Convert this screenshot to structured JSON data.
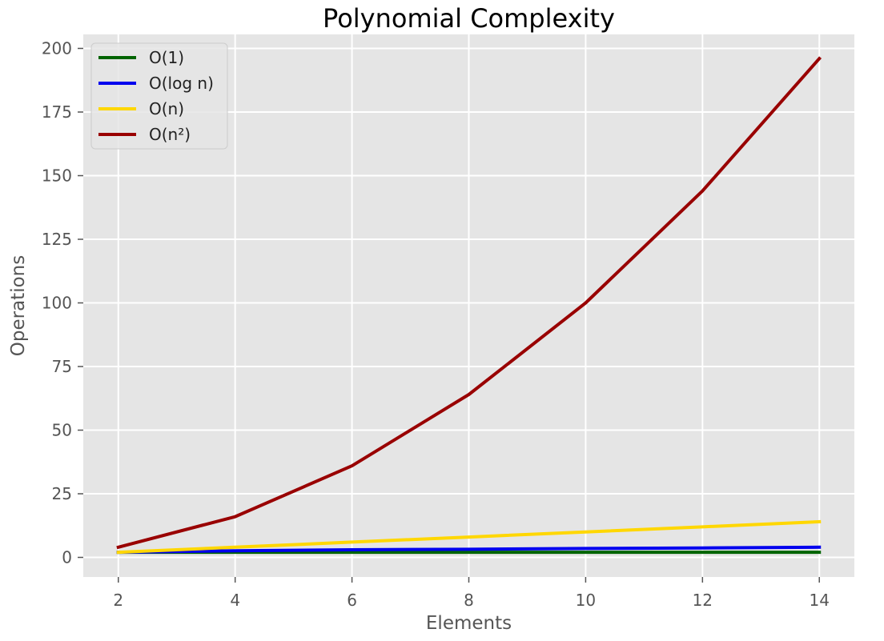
{
  "chart_data": {
    "type": "line",
    "title": "Polynomial Complexity",
    "xlabel": "Elements",
    "ylabel": "Operations",
    "x": [
      2,
      4,
      6,
      8,
      10,
      12,
      14
    ],
    "xlim": [
      1.4,
      14.6
    ],
    "ylim": [
      -7.7,
      205.5
    ],
    "xticks": [
      2,
      4,
      6,
      8,
      10,
      12,
      14
    ],
    "yticks": [
      0,
      25,
      50,
      75,
      100,
      125,
      150,
      175,
      200
    ],
    "grid": true,
    "legend_position": "top-left",
    "series": [
      {
        "name": "O(1)",
        "color": "#006400",
        "values": [
          2,
          2,
          2,
          2,
          2,
          2,
          2
        ]
      },
      {
        "name": "O(log n)",
        "color": "#0000ee",
        "values": [
          2,
          2.6,
          3,
          3.2,
          3.5,
          3.7,
          4
        ]
      },
      {
        "name": "O(n)",
        "color": "#ffd700",
        "values": [
          2,
          4,
          6,
          8,
          10,
          12,
          14
        ]
      },
      {
        "name": "O(n²)",
        "color": "#990000",
        "values": [
          4,
          16,
          36,
          64,
          100,
          144,
          196
        ]
      }
    ]
  },
  "style": {
    "plot_background": "#e5e5e5",
    "grid_color": "#ffffff"
  }
}
